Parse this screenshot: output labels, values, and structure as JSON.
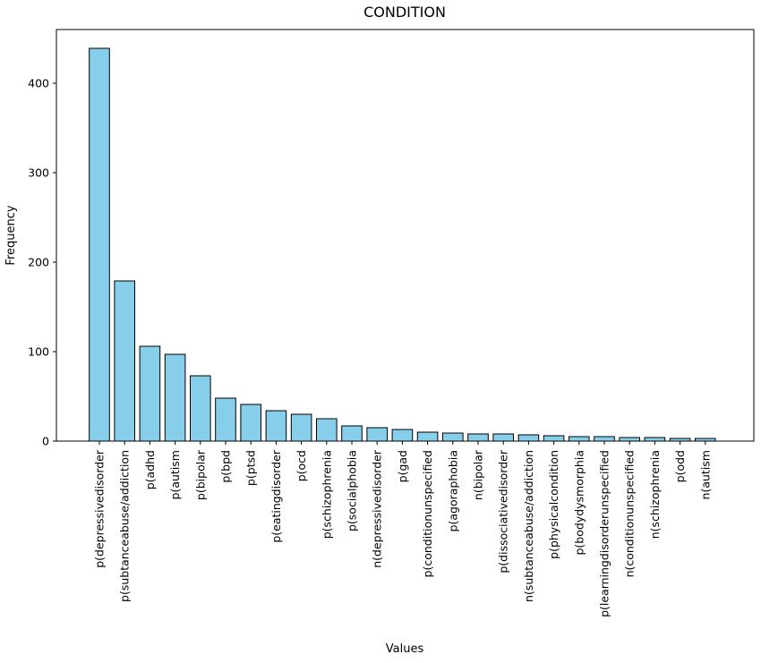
{
  "window": {
    "kind": "matplotlib-style-figure",
    "background": "#FFFFFF"
  },
  "chart_data": {
    "type": "bar",
    "title": "CONDITION",
    "xlabel": "Values",
    "ylabel": "Frequency",
    "categories": [
      "p(depressivedisorder",
      "p(subtanceabuse/addiction",
      "p(adhd",
      "p(autism",
      "p(bipolar",
      "p(bpd",
      "p(ptsd",
      "p(eatingdisorder",
      "p(ocd",
      "p(schizophrenia",
      "p(socialphobia",
      "n(depressivedisorder",
      "p(gad",
      "p(conditionunspecified",
      "p(agoraphobia",
      "n(bipolar",
      "p(dissociativedisorder",
      "n(subtanceabuse/addiction",
      "p(physicalcondition",
      "p(bodydysmorphia",
      "p(learningdisorderunspecified",
      "n(conditionunspecified",
      "n(schizophrenia",
      "p(odd",
      "n(autism"
    ],
    "values": [
      439,
      179,
      106,
      97,
      73,
      48,
      41,
      34,
      30,
      25,
      17,
      15,
      13,
      10,
      9,
      8,
      8,
      7,
      6,
      5,
      5,
      4,
      4,
      3,
      3
    ],
    "ylim": [
      0,
      460
    ],
    "yticks": [
      0,
      100,
      200,
      300,
      400
    ],
    "xtick_rotation_deg": 90,
    "grid": false,
    "legend": null,
    "bar_color": "#87CEEB",
    "bar_edge_color": "#000000",
    "axis_color": "#000000"
  }
}
